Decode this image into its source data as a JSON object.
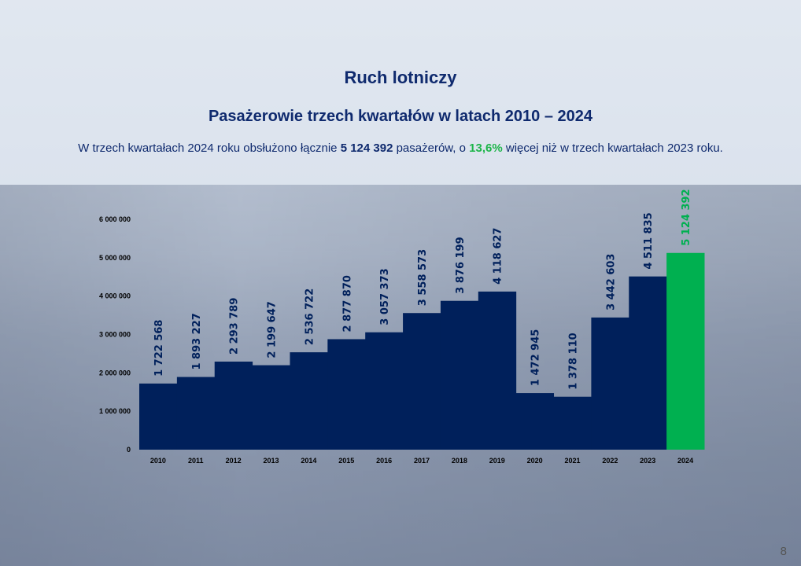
{
  "header": {
    "title": "Ruch lotniczy",
    "subtitle": "Pasażerowie trzech kwartałów w latach 2010 – 2024",
    "desc_part1": "W trzech kwartałach 2024 roku obsłużono łącznie ",
    "desc_total": "5 124 392",
    "desc_part2": " pasażerów, o ",
    "desc_growth": "13,6%",
    "desc_part3": " więcej niż w trzech kwartałach 2023 roku."
  },
  "page_number": "8",
  "colors": {
    "bar": "#00205b",
    "highlight": "#00b050",
    "text": "#0f2a6e"
  },
  "chart_data": {
    "type": "bar",
    "categories": [
      "2010",
      "2011",
      "2012",
      "2013",
      "2014",
      "2015",
      "2016",
      "2017",
      "2018",
      "2019",
      "2020",
      "2021",
      "2022",
      "2023",
      "2024"
    ],
    "values": [
      1722568,
      1893227,
      2293789,
      2199647,
      2536722,
      2877870,
      3057373,
      3558573,
      3876199,
      4118627,
      1472945,
      1378110,
      3442603,
      4511835,
      5124392
    ],
    "data_labels": [
      "1 722 568",
      "1 893 227",
      "2 293 789",
      "2 199 647",
      "2 536 722",
      "2 877 870",
      "3 057 373",
      "3 558 573",
      "3 876 199",
      "4 118 627",
      "1 472 945",
      "1 378 110",
      "3 442 603",
      "4 511 835",
      "5 124 392"
    ],
    "highlight_category": "2024",
    "ylim": [
      0,
      6000000
    ],
    "yticks": [
      0,
      1000000,
      2000000,
      3000000,
      4000000,
      5000000,
      6000000
    ],
    "ytick_labels": [
      "0",
      "1 000 000",
      "2 000 000",
      "3 000 000",
      "4 000 000",
      "5 000 000",
      "6 000 000"
    ],
    "xlabel": "",
    "ylabel": "",
    "grid": false,
    "legend": "none"
  }
}
